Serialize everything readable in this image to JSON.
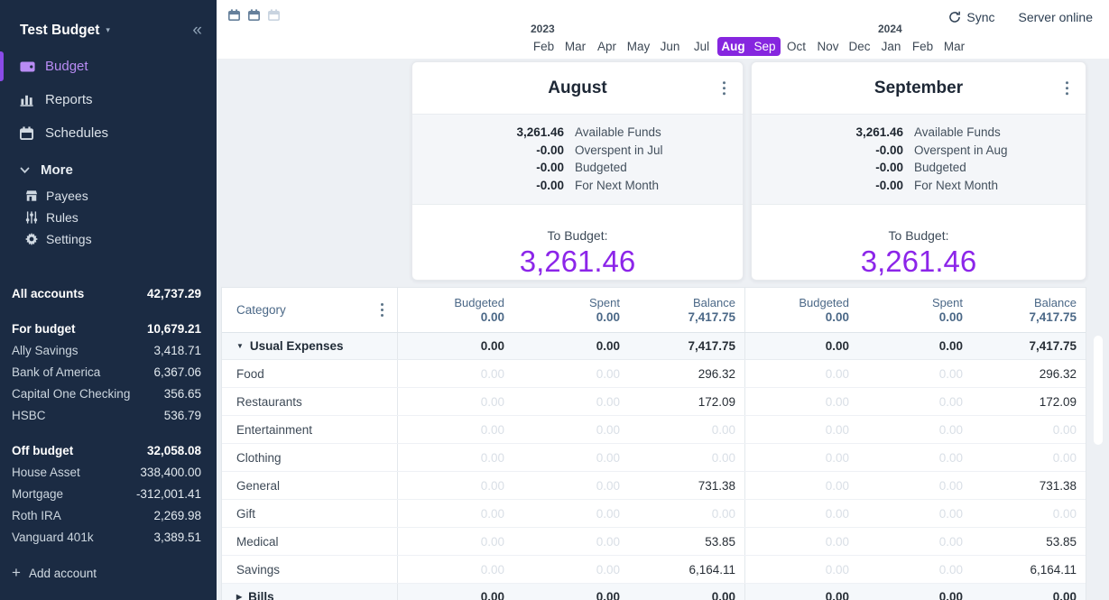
{
  "app": {
    "sync_label": "Sync",
    "server_status": "Server online"
  },
  "sidebar": {
    "budget_name": "Test Budget",
    "nav_items": [
      {
        "id": "budget",
        "label": "Budget",
        "icon": "wallet-icon",
        "active": true
      },
      {
        "id": "reports",
        "label": "Reports",
        "icon": "bar-chart-icon",
        "active": false
      },
      {
        "id": "schedules",
        "label": "Schedules",
        "icon": "calendar-icon",
        "active": false
      }
    ],
    "more_label": "More",
    "more_items": [
      {
        "id": "payees",
        "label": "Payees",
        "icon": "store-icon"
      },
      {
        "id": "rules",
        "label": "Rules",
        "icon": "sliders-icon"
      },
      {
        "id": "settings",
        "label": "Settings",
        "icon": "gear-icon"
      }
    ],
    "all_accounts": {
      "label": "All accounts",
      "value": "42,737.29"
    },
    "account_groups": [
      {
        "label": "For budget",
        "value": "10,679.21",
        "accounts": [
          {
            "name": "Ally Savings",
            "value": "3,418.71"
          },
          {
            "name": "Bank of America",
            "value": "6,367.06"
          },
          {
            "name": "Capital One Checking",
            "value": "356.65"
          },
          {
            "name": "HSBC",
            "value": "536.79"
          }
        ]
      },
      {
        "label": "Off budget",
        "value": "32,058.08",
        "accounts": [
          {
            "name": "House Asset",
            "value": "338,400.00"
          },
          {
            "name": "Mortgage",
            "value": "-312,001.41"
          },
          {
            "name": "Roth IRA",
            "value": "2,269.98"
          },
          {
            "name": "Vanguard 401k",
            "value": "3,389.51"
          }
        ]
      }
    ],
    "add_account_label": "Add account"
  },
  "month_nav": {
    "years": [
      {
        "label": "2023",
        "at_month_index": 0
      },
      {
        "label": "2024",
        "at_month_index": 11
      }
    ],
    "months": [
      "Feb",
      "Mar",
      "Apr",
      "May",
      "Jun",
      "Jul",
      "Aug",
      "Sep",
      "Oct",
      "Nov",
      "Dec",
      "Jan",
      "Feb",
      "Mar"
    ],
    "selected_indices": [
      6,
      7
    ]
  },
  "budget_months": [
    {
      "title": "August",
      "summary": [
        {
          "value": "3,261.46",
          "label": "Available Funds"
        },
        {
          "value": "-0.00",
          "label": "Overspent in Jul"
        },
        {
          "value": "-0.00",
          "label": "Budgeted"
        },
        {
          "value": "-0.00",
          "label": "For Next Month"
        }
      ],
      "to_budget_label": "To Budget:",
      "to_budget_value": "3,261.46"
    },
    {
      "title": "September",
      "summary": [
        {
          "value": "3,261.46",
          "label": "Available Funds"
        },
        {
          "value": "-0.00",
          "label": "Overspent in Aug"
        },
        {
          "value": "-0.00",
          "label": "Budgeted"
        },
        {
          "value": "-0.00",
          "label": "For Next Month"
        }
      ],
      "to_budget_label": "To Budget:",
      "to_budget_value": "3,261.46"
    }
  ],
  "table": {
    "category_header": "Category",
    "value_columns": [
      "Budgeted",
      "Spent",
      "Balance"
    ],
    "column_totals": {
      "budgeted": "0.00",
      "spent": "0.00",
      "balance": "7,417.75"
    },
    "groups": [
      {
        "name": "Usual Expenses",
        "expanded": true,
        "totals": {
          "budgeted": "0.00",
          "spent": "0.00",
          "balance": "7,417.75"
        },
        "categories": [
          {
            "name": "Food",
            "budgeted": "0.00",
            "spent": "0.00",
            "balance": "296.32"
          },
          {
            "name": "Restaurants",
            "budgeted": "0.00",
            "spent": "0.00",
            "balance": "172.09"
          },
          {
            "name": "Entertainment",
            "budgeted": "0.00",
            "spent": "0.00",
            "balance": "0.00"
          },
          {
            "name": "Clothing",
            "budgeted": "0.00",
            "spent": "0.00",
            "balance": "0.00"
          },
          {
            "name": "General",
            "budgeted": "0.00",
            "spent": "0.00",
            "balance": "731.38"
          },
          {
            "name": "Gift",
            "budgeted": "0.00",
            "spent": "0.00",
            "balance": "0.00"
          },
          {
            "name": "Medical",
            "budgeted": "0.00",
            "spent": "0.00",
            "balance": "53.85"
          },
          {
            "name": "Savings",
            "budgeted": "0.00",
            "spent": "0.00",
            "balance": "6,164.11"
          }
        ]
      },
      {
        "name": "Bills",
        "expanded": false,
        "totals": {
          "budgeted": "0.00",
          "spent": "0.00",
          "balance": "0.00"
        },
        "categories": []
      }
    ]
  },
  "colors": {
    "sidebar_bg": "#1b2b43",
    "accent_purple": "#8626df",
    "to_budget_purple": "#8c25e9",
    "active_nav_purple": "#b98cf4",
    "page_bg": "#edf0f4"
  }
}
